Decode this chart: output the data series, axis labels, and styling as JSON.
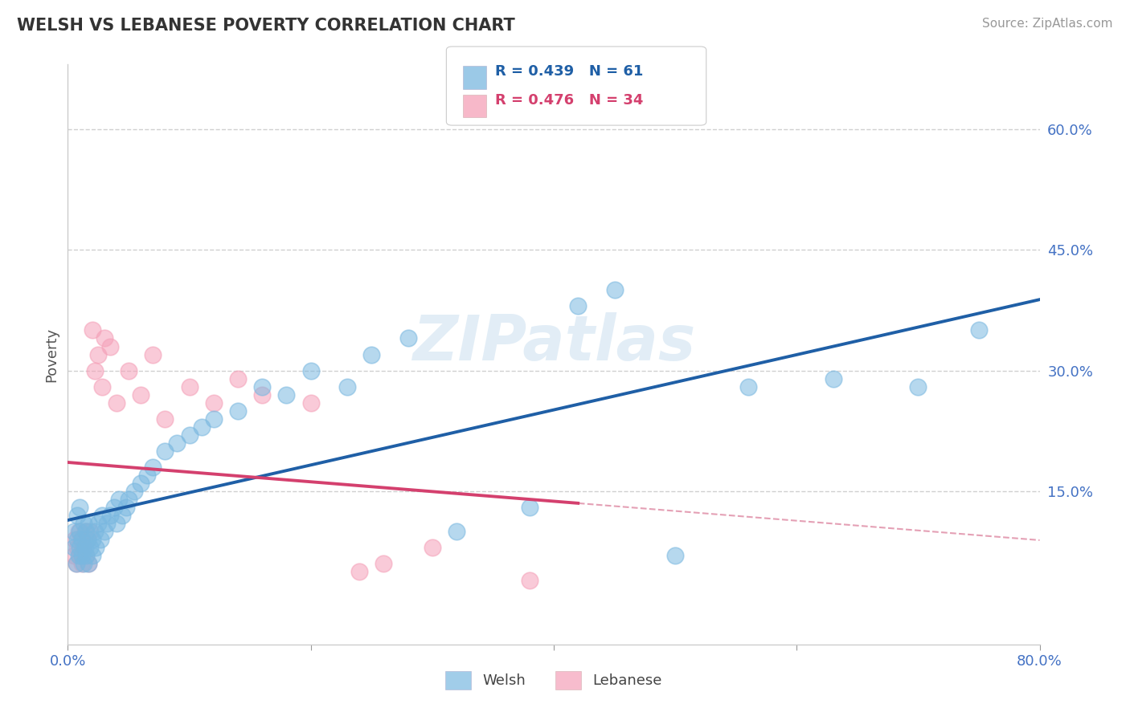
{
  "title": "WELSH VS LEBANESE POVERTY CORRELATION CHART",
  "source": "Source: ZipAtlas.com",
  "ylabel_val": "Poverty",
  "xlim": [
    0.0,
    0.8
  ],
  "ylim": [
    -0.04,
    0.68
  ],
  "yticks_right": [
    0.15,
    0.3,
    0.45,
    0.6
  ],
  "ytick_right_labels": [
    "15.0%",
    "30.0%",
    "45.0%",
    "60.0%"
  ],
  "welsh_color": "#7ab8e0",
  "lebanese_color": "#f5a0b8",
  "welsh_line_color": "#1f5fa6",
  "lebanese_line_color": "#d4406e",
  "dashed_line_color": "#e090a8",
  "legend_R_welsh": "R = 0.439",
  "legend_N_welsh": "N = 61",
  "legend_R_lebanese": "R = 0.476",
  "legend_N_lebanese": "N = 34",
  "watermark": "ZIPatlas",
  "welsh_x": [
    0.005,
    0.005,
    0.007,
    0.008,
    0.008,
    0.009,
    0.01,
    0.01,
    0.01,
    0.012,
    0.012,
    0.013,
    0.013,
    0.014,
    0.015,
    0.015,
    0.016,
    0.017,
    0.017,
    0.018,
    0.02,
    0.02,
    0.022,
    0.023,
    0.025,
    0.027,
    0.028,
    0.03,
    0.032,
    0.035,
    0.038,
    0.04,
    0.042,
    0.045,
    0.048,
    0.05,
    0.055,
    0.06,
    0.065,
    0.07,
    0.08,
    0.09,
    0.1,
    0.11,
    0.12,
    0.14,
    0.16,
    0.18,
    0.2,
    0.23,
    0.25,
    0.28,
    0.32,
    0.38,
    0.42,
    0.45,
    0.5,
    0.56,
    0.63,
    0.7,
    0.75
  ],
  "welsh_y": [
    0.08,
    0.1,
    0.06,
    0.09,
    0.12,
    0.07,
    0.08,
    0.1,
    0.13,
    0.07,
    0.09,
    0.06,
    0.11,
    0.08,
    0.07,
    0.1,
    0.09,
    0.06,
    0.11,
    0.08,
    0.09,
    0.07,
    0.1,
    0.08,
    0.11,
    0.09,
    0.12,
    0.1,
    0.11,
    0.12,
    0.13,
    0.11,
    0.14,
    0.12,
    0.13,
    0.14,
    0.15,
    0.16,
    0.17,
    0.18,
    0.2,
    0.21,
    0.22,
    0.23,
    0.24,
    0.25,
    0.28,
    0.27,
    0.3,
    0.28,
    0.32,
    0.34,
    0.1,
    0.13,
    0.38,
    0.4,
    0.07,
    0.28,
    0.29,
    0.28,
    0.35
  ],
  "lebanese_x": [
    0.005,
    0.006,
    0.007,
    0.008,
    0.009,
    0.01,
    0.011,
    0.012,
    0.013,
    0.014,
    0.015,
    0.016,
    0.017,
    0.018,
    0.02,
    0.022,
    0.025,
    0.028,
    0.03,
    0.035,
    0.04,
    0.05,
    0.06,
    0.07,
    0.08,
    0.1,
    0.12,
    0.14,
    0.16,
    0.2,
    0.24,
    0.26,
    0.3,
    0.38
  ],
  "lebanese_y": [
    0.07,
    0.09,
    0.06,
    0.08,
    0.1,
    0.07,
    0.09,
    0.06,
    0.08,
    0.1,
    0.07,
    0.09,
    0.06,
    0.1,
    0.35,
    0.3,
    0.32,
    0.28,
    0.34,
    0.33,
    0.26,
    0.3,
    0.27,
    0.32,
    0.24,
    0.28,
    0.26,
    0.29,
    0.27,
    0.26,
    0.05,
    0.06,
    0.08,
    0.04
  ],
  "background_color": "#ffffff",
  "grid_color": "#d0d0d0"
}
